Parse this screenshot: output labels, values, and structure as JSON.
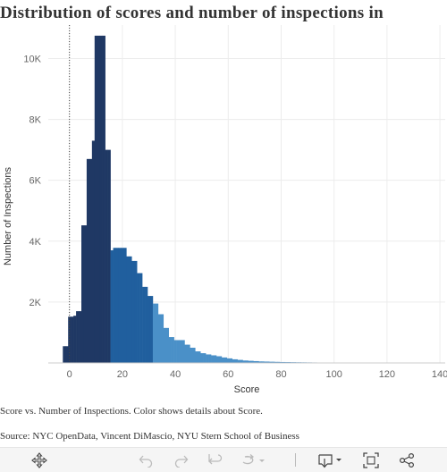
{
  "title": "Distribution of scores and number of inspections in",
  "chart_data": {
    "type": "bar",
    "title": "Distribution of scores and number of inspections in",
    "xlabel": "Score",
    "ylabel": "Number of Inspections",
    "xlim": [
      -8,
      142
    ],
    "ylim": [
      0,
      11100
    ],
    "x_ticks": [
      0,
      20,
      40,
      60,
      80,
      100,
      120,
      140
    ],
    "y_ticks": [
      2000,
      4000,
      6000,
      8000,
      10000
    ],
    "y_tick_labels": [
      "2K",
      "4K",
      "6K",
      "8K",
      "10K"
    ],
    "x_tick_labels": [
      "0",
      "20",
      "40",
      "60",
      "80",
      "100",
      "120",
      "140"
    ],
    "reference_line_x": 0,
    "grid": true,
    "colors": {
      "low": "#1f3864",
      "mid": "#205f9e",
      "high": "#4a90c8",
      "reference": "#444444",
      "grid": "#ececec"
    },
    "bins": [
      {
        "x": -2,
        "value": 550
      },
      {
        "x": -1,
        "value": 550
      },
      {
        "x": 0,
        "value": 1520
      },
      {
        "x": 1,
        "value": 1520
      },
      {
        "x": 2,
        "value": 1550
      },
      {
        "x": 3,
        "value": 1700
      },
      {
        "x": 4,
        "value": 1700
      },
      {
        "x": 5,
        "value": 4520
      },
      {
        "x": 6,
        "value": 4520
      },
      {
        "x": 7,
        "value": 6700
      },
      {
        "x": 8,
        "value": 6700
      },
      {
        "x": 9,
        "value": 7300
      },
      {
        "x": 10,
        "value": 10750
      },
      {
        "x": 11,
        "value": 10750
      },
      {
        "x": 12,
        "value": 10750
      },
      {
        "x": 13,
        "value": 10750
      },
      {
        "x": 14,
        "value": 7000
      },
      {
        "x": 15,
        "value": 7000
      },
      {
        "x": 16,
        "value": 3700
      },
      {
        "x": 17,
        "value": 3780
      },
      {
        "x": 18,
        "value": 3780
      },
      {
        "x": 19,
        "value": 3780
      },
      {
        "x": 20,
        "value": 3780
      },
      {
        "x": 21,
        "value": 3780
      },
      {
        "x": 22,
        "value": 3500
      },
      {
        "x": 23,
        "value": 3500
      },
      {
        "x": 24,
        "value": 3350
      },
      {
        "x": 25,
        "value": 3350
      },
      {
        "x": 26,
        "value": 2950
      },
      {
        "x": 27,
        "value": 2950
      },
      {
        "x": 28,
        "value": 2500
      },
      {
        "x": 29,
        "value": 2500
      },
      {
        "x": 30,
        "value": 2200
      },
      {
        "x": 31,
        "value": 2200
      },
      {
        "x": 32,
        "value": 1950
      },
      {
        "x": 33,
        "value": 1950
      },
      {
        "x": 34,
        "value": 1600
      },
      {
        "x": 35,
        "value": 1600
      },
      {
        "x": 36,
        "value": 1150
      },
      {
        "x": 37,
        "value": 1150
      },
      {
        "x": 38,
        "value": 850
      },
      {
        "x": 39,
        "value": 850
      },
      {
        "x": 40,
        "value": 750
      },
      {
        "x": 41,
        "value": 750
      },
      {
        "x": 42,
        "value": 750
      },
      {
        "x": 43,
        "value": 750
      },
      {
        "x": 44,
        "value": 600
      },
      {
        "x": 45,
        "value": 600
      },
      {
        "x": 46,
        "value": 500
      },
      {
        "x": 47,
        "value": 500
      },
      {
        "x": 48,
        "value": 380
      },
      {
        "x": 49,
        "value": 380
      },
      {
        "x": 50,
        "value": 320
      },
      {
        "x": 51,
        "value": 320
      },
      {
        "x": 52,
        "value": 280
      },
      {
        "x": 53,
        "value": 280
      },
      {
        "x": 54,
        "value": 250
      },
      {
        "x": 55,
        "value": 250
      },
      {
        "x": 56,
        "value": 220
      },
      {
        "x": 57,
        "value": 220
      },
      {
        "x": 58,
        "value": 180
      },
      {
        "x": 59,
        "value": 180
      },
      {
        "x": 60,
        "value": 150
      },
      {
        "x": 61,
        "value": 150
      },
      {
        "x": 62,
        "value": 120
      },
      {
        "x": 63,
        "value": 120
      },
      {
        "x": 64,
        "value": 100
      },
      {
        "x": 65,
        "value": 100
      },
      {
        "x": 66,
        "value": 80
      },
      {
        "x": 67,
        "value": 80
      },
      {
        "x": 68,
        "value": 70
      },
      {
        "x": 69,
        "value": 70
      },
      {
        "x": 70,
        "value": 60
      },
      {
        "x": 71,
        "value": 60
      },
      {
        "x": 72,
        "value": 50
      },
      {
        "x": 73,
        "value": 50
      },
      {
        "x": 74,
        "value": 45
      },
      {
        "x": 75,
        "value": 45
      },
      {
        "x": 76,
        "value": 40
      },
      {
        "x": 77,
        "value": 40
      },
      {
        "x": 78,
        "value": 35
      },
      {
        "x": 79,
        "value": 35
      },
      {
        "x": 80,
        "value": 30
      },
      {
        "x": 81,
        "value": 30
      },
      {
        "x": 82,
        "value": 28
      },
      {
        "x": 83,
        "value": 28
      },
      {
        "x": 84,
        "value": 25
      },
      {
        "x": 85,
        "value": 25
      },
      {
        "x": 86,
        "value": 22
      },
      {
        "x": 87,
        "value": 22
      },
      {
        "x": 88,
        "value": 20
      },
      {
        "x": 89,
        "value": 20
      },
      {
        "x": 90,
        "value": 18
      },
      {
        "x": 91,
        "value": 18
      },
      {
        "x": 92,
        "value": 16
      },
      {
        "x": 93,
        "value": 16
      },
      {
        "x": 94,
        "value": 14
      },
      {
        "x": 95,
        "value": 14
      },
      {
        "x": 96,
        "value": 12
      },
      {
        "x": 97,
        "value": 12
      },
      {
        "x": 98,
        "value": 10
      },
      {
        "x": 99,
        "value": 10
      },
      {
        "x": 100,
        "value": 9
      },
      {
        "x": 101,
        "value": 9
      },
      {
        "x": 102,
        "value": 8
      },
      {
        "x": 103,
        "value": 8
      },
      {
        "x": 104,
        "value": 7
      },
      {
        "x": 105,
        "value": 7
      },
      {
        "x": 106,
        "value": 6
      },
      {
        "x": 107,
        "value": 6
      },
      {
        "x": 108,
        "value": 6
      },
      {
        "x": 109,
        "value": 6
      },
      {
        "x": 110,
        "value": 5
      },
      {
        "x": 111,
        "value": 5
      },
      {
        "x": 112,
        "value": 4
      },
      {
        "x": 113,
        "value": 4
      }
    ]
  },
  "captions": {
    "description": "Score vs. Number of Inspections.  Color shows details about Score.",
    "source": "Source: NYC OpenData, Vincent DiMascio, NYU Stern School of Business"
  },
  "toolbar": {
    "icons": [
      "move-icon",
      "undo-icon",
      "redo-icon",
      "revert-icon",
      "refresh-icon",
      "download-icon",
      "fullscreen-icon",
      "share-icon"
    ]
  }
}
